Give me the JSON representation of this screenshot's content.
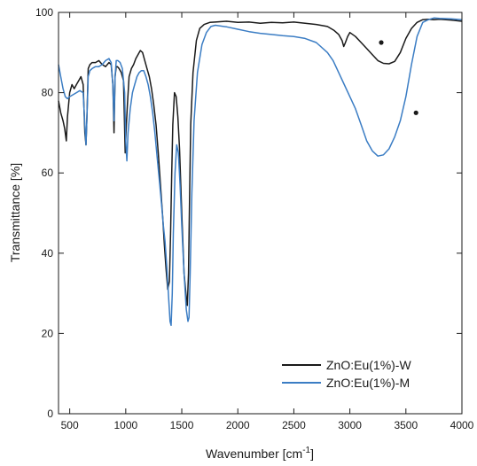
{
  "chart_data": {
    "type": "line",
    "title": "",
    "xlabel": "Wavenumber [cm",
    "xlabel_sup": "-1",
    "xlabel_close": "]",
    "ylabel": "Transmittance [%]",
    "xlim": [
      400,
      4000
    ],
    "ylim": [
      0,
      100
    ],
    "x_ticks": [
      500,
      1000,
      1500,
      2000,
      2500,
      3000,
      3500,
      4000
    ],
    "y_ticks": [
      0,
      20,
      40,
      60,
      80,
      100
    ],
    "grid": false,
    "legend_position": "bottom-right",
    "series": [
      {
        "name": "ZnO:Eu(1%)-W",
        "color": "#1a1a1a",
        "x": [
          400,
          420,
          440,
          455,
          470,
          480,
          500,
          520,
          540,
          560,
          580,
          600,
          620,
          635,
          645,
          655,
          665,
          680,
          700,
          730,
          760,
          790,
          820,
          850,
          870,
          885,
          895,
          905,
          915,
          925,
          940,
          960,
          980,
          995,
          1005,
          1015,
          1030,
          1050,
          1070,
          1090,
          1110,
          1130,
          1150,
          1170,
          1190,
          1210,
          1230,
          1250,
          1270,
          1290,
          1310,
          1330,
          1345,
          1360,
          1375,
          1390,
          1400,
          1410,
          1420,
          1435,
          1450,
          1465,
          1480,
          1500,
          1520,
          1540,
          1550,
          1560,
          1570,
          1580,
          1600,
          1630,
          1660,
          1700,
          1750,
          1800,
          1900,
          2000,
          2100,
          2200,
          2300,
          2400,
          2500,
          2600,
          2700,
          2800,
          2860,
          2900,
          2930,
          2945,
          2960,
          2980,
          3000,
          3050,
          3100,
          3150,
          3200,
          3250,
          3300,
          3350,
          3400,
          3450,
          3500,
          3550,
          3600,
          3650,
          3700,
          3750,
          3800,
          3900,
          4000
        ],
        "y": [
          78,
          75,
          73,
          71,
          68,
          74,
          80,
          82,
          81,
          82,
          83,
          84,
          82,
          70,
          67,
          75,
          86,
          87,
          87.5,
          87.5,
          88,
          87,
          86.5,
          87.5,
          87,
          82,
          70,
          84,
          86.5,
          86.5,
          86,
          85,
          83,
          65,
          72,
          77,
          84,
          86,
          87,
          88.5,
          89.5,
          90.5,
          90,
          88,
          86,
          84,
          81,
          77,
          72,
          65,
          57,
          49,
          42,
          36,
          31,
          33,
          45,
          60,
          72,
          80,
          79,
          74,
          66,
          50,
          35,
          29,
          27,
          35,
          55,
          72,
          85,
          93,
          96,
          97,
          97.5,
          97.6,
          97.8,
          97.5,
          97.6,
          97.3,
          97.5,
          97.4,
          97.6,
          97.3,
          97,
          96.5,
          95.5,
          94.5,
          93,
          91.5,
          92.5,
          94,
          95,
          94,
          92.5,
          91,
          89.5,
          88,
          87.3,
          87.2,
          87.8,
          90,
          93.5,
          96,
          97.5,
          98.2,
          98.3,
          98.2,
          98.3,
          98.1,
          97.8
        ]
      },
      {
        "name": "ZnO:Eu(1%)-M",
        "color": "#3b7dc4",
        "x": [
          400,
          420,
          440,
          460,
          480,
          500,
          530,
          560,
          590,
          620,
          635,
          645,
          655,
          665,
          680,
          700,
          730,
          760,
          790,
          820,
          850,
          870,
          885,
          895,
          905,
          915,
          930,
          950,
          970,
          990,
          1000,
          1010,
          1020,
          1040,
          1060,
          1080,
          1100,
          1120,
          1140,
          1160,
          1180,
          1200,
          1220,
          1240,
          1260,
          1280,
          1300,
          1320,
          1335,
          1350,
          1365,
          1380,
          1395,
          1405,
          1415,
          1425,
          1440,
          1455,
          1470,
          1485,
          1500,
          1520,
          1540,
          1555,
          1565,
          1575,
          1590,
          1610,
          1640,
          1680,
          1720,
          1760,
          1800,
          1900,
          2000,
          2100,
          2200,
          2300,
          2400,
          2500,
          2600,
          2700,
          2800,
          2850,
          2900,
          2950,
          3000,
          3050,
          3100,
          3150,
          3200,
          3250,
          3300,
          3350,
          3400,
          3450,
          3500,
          3550,
          3600,
          3650,
          3700,
          3750,
          3800,
          3900,
          4000
        ],
        "y": [
          87,
          84,
          81,
          79,
          78.5,
          79,
          79.5,
          80,
          80.5,
          80,
          72,
          67,
          75,
          84,
          85.5,
          86,
          86.5,
          86.5,
          87,
          88,
          88.5,
          87.5,
          82,
          73,
          84,
          88,
          88,
          87.5,
          86,
          80,
          68,
          63,
          70,
          76,
          80,
          82,
          84,
          85,
          85.5,
          85.5,
          84,
          82,
          79,
          75,
          70,
          64,
          58,
          52,
          47,
          43,
          37,
          30,
          23,
          22,
          30,
          45,
          60,
          67,
          65,
          57,
          47,
          35,
          26,
          23,
          24,
          35,
          55,
          73,
          85,
          92,
          95,
          96.5,
          96.8,
          96.4,
          95.8,
          95.2,
          94.8,
          94.5,
          94.2,
          94,
          93.5,
          92.5,
          90,
          88,
          85,
          82,
          79,
          76,
          72,
          68,
          65.5,
          64.2,
          64.5,
          66,
          69,
          73,
          79,
          87,
          94,
          97.5,
          98.2,
          98.6,
          98.5,
          98.4,
          98.2
        ]
      }
    ],
    "markers": [
      {
        "x": 3280,
        "y": 92.5
      },
      {
        "x": 3590,
        "y": 75
      }
    ]
  }
}
